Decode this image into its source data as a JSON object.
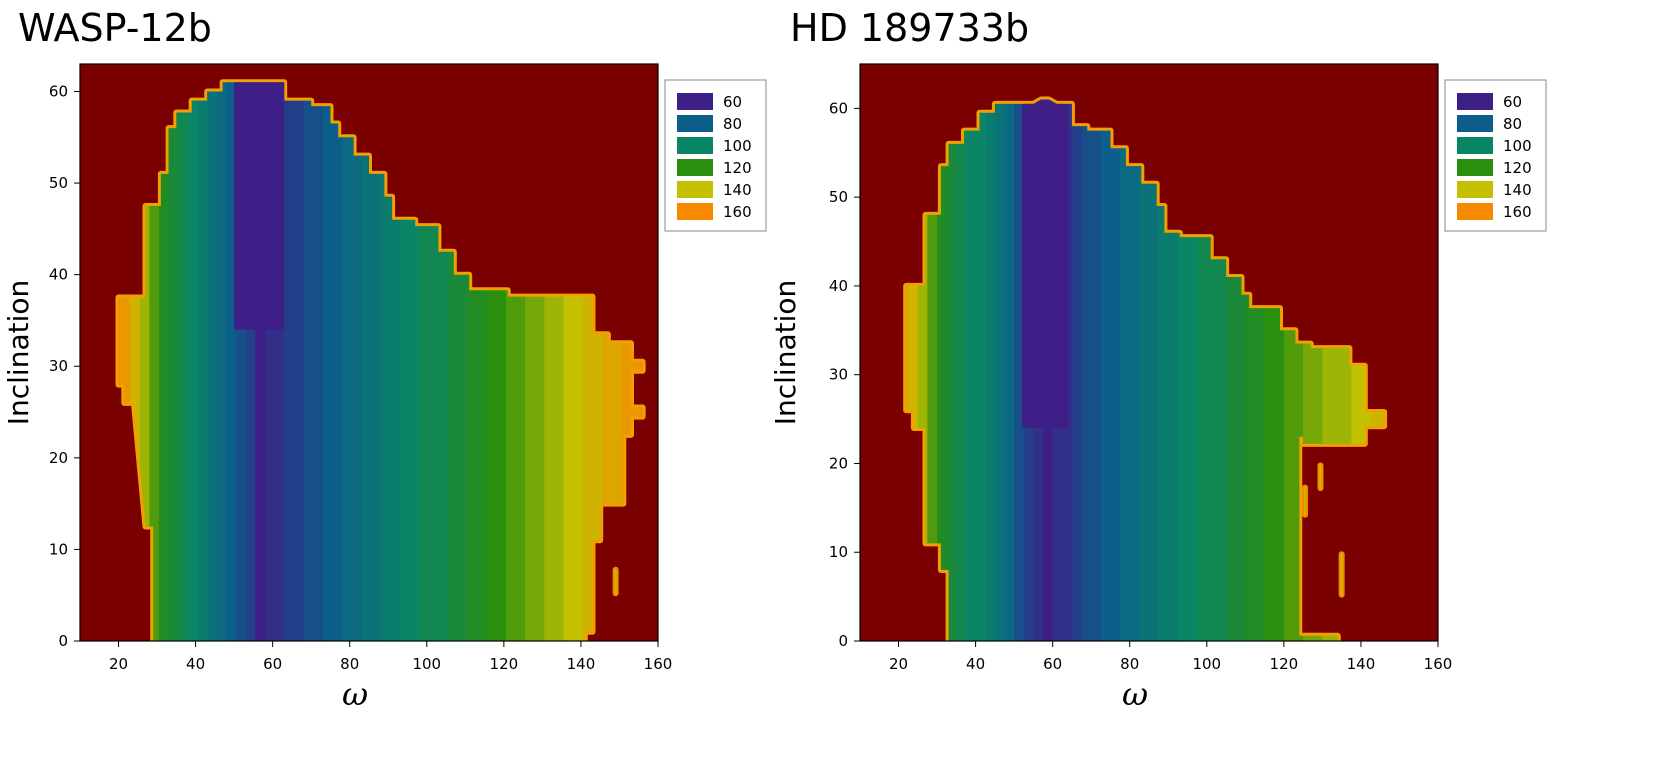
{
  "chart_data": [
    {
      "type": "heatmap",
      "title": "WASP-12b",
      "xlabel": "ω",
      "ylabel": "Inclination",
      "xlim": [
        10,
        160
      ],
      "ylim": [
        0,
        63
      ],
      "x_ticks": [
        20,
        40,
        60,
        80,
        100,
        120,
        140,
        160
      ],
      "y_ticks": [
        0,
        10,
        20,
        30,
        40,
        50,
        60
      ],
      "background_color": "#7a0000",
      "legend": {
        "placement": "top-right",
        "levels": [
          60,
          80,
          100,
          120,
          140,
          160
        ],
        "colors": [
          "#3d1f87",
          "#0b5f8a",
          "#0a8565",
          "#2a8e0e",
          "#c3c000",
          "#f58a00"
        ]
      },
      "region_boundary": {
        "upper": [
          [
            20,
            37.5
          ],
          [
            27,
            37.5
          ],
          [
            27,
            47.5
          ],
          [
            31,
            47.5
          ],
          [
            31,
            51
          ],
          [
            33,
            51
          ],
          [
            33,
            56
          ],
          [
            35,
            56
          ],
          [
            35,
            57.7
          ],
          [
            39,
            57.7
          ],
          [
            39,
            59
          ],
          [
            43,
            59
          ],
          [
            43,
            60
          ],
          [
            47,
            60
          ],
          [
            47,
            61
          ],
          [
            63,
            61
          ],
          [
            63,
            59
          ],
          [
            70,
            59
          ],
          [
            70,
            58.4
          ],
          [
            75,
            58.4
          ],
          [
            75,
            56.5
          ],
          [
            77,
            56.5
          ],
          [
            77,
            55
          ],
          [
            81,
            55
          ],
          [
            81,
            53
          ],
          [
            85,
            53
          ],
          [
            85,
            51
          ],
          [
            89,
            51
          ],
          [
            89,
            48.5
          ],
          [
            91,
            48.5
          ],
          [
            91,
            46
          ],
          [
            97,
            46
          ],
          [
            97,
            45.3
          ],
          [
            103,
            45.3
          ],
          [
            103,
            42.5
          ],
          [
            107,
            42.5
          ],
          [
            107,
            40
          ],
          [
            111,
            40
          ],
          [
            111,
            38.3
          ],
          [
            121,
            38.3
          ],
          [
            121,
            37.6
          ],
          [
            143,
            37.6
          ],
          [
            143,
            33.5
          ],
          [
            147,
            33.5
          ],
          [
            147,
            32.5
          ],
          [
            153,
            32.5
          ],
          [
            153,
            30.5
          ],
          [
            156,
            30.5
          ],
          [
            156,
            29.5
          ],
          [
            153,
            29.5
          ],
          [
            153,
            25.5
          ],
          [
            156,
            25.5
          ],
          [
            156,
            24.5
          ],
          [
            153,
            24.5
          ],
          [
            153,
            22.5
          ]
        ],
        "lower": [
          [
            20,
            37.5
          ],
          [
            20,
            28
          ],
          [
            21.5,
            28
          ],
          [
            21.5,
            26
          ],
          [
            24,
            26
          ],
          [
            27,
            12.5
          ],
          [
            29,
            12.5
          ],
          [
            29,
            0
          ],
          [
            141,
            0
          ],
          [
            141,
            1
          ],
          [
            143,
            1
          ],
          [
            143,
            11
          ],
          [
            145,
            11
          ],
          [
            145,
            15
          ],
          [
            151,
            15
          ],
          [
            151,
            22.5
          ],
          [
            153,
            22.5
          ]
        ]
      },
      "color_gradient": {
        "x": [
          20,
          25,
          30,
          40,
          50,
          57,
          65,
          75,
          85,
          95,
          105,
          112,
          117,
          122,
          127,
          132,
          137,
          142,
          147,
          152,
          156
        ],
        "value": [
          160,
          140,
          120,
          100,
          80,
          60,
          70,
          80,
          90,
          100,
          108,
          115,
          120,
          125,
          130,
          135,
          140,
          145,
          150,
          155,
          158
        ]
      },
      "purple_core": {
        "x_range": [
          50,
          63
        ],
        "inclination_min": 34
      },
      "isolated_patches": [
        {
          "x": 149,
          "inclination_range": [
            5,
            8
          ]
        }
      ]
    },
    {
      "type": "heatmap",
      "title": "HD 189733b",
      "xlabel": "ω",
      "ylabel": "Inclination",
      "xlim": [
        10,
        160
      ],
      "ylim": [
        0,
        65
      ],
      "x_ticks": [
        20,
        40,
        60,
        80,
        100,
        120,
        140,
        160
      ],
      "y_ticks": [
        0,
        10,
        20,
        30,
        40,
        50,
        60
      ],
      "background_color": "#7a0000",
      "legend": {
        "placement": "top-right",
        "levels": [
          60,
          80,
          100,
          120,
          140,
          160
        ],
        "colors": [
          "#3d1f87",
          "#0b5f8a",
          "#0a8565",
          "#2a8e0e",
          "#c3c000",
          "#f58a00"
        ]
      },
      "region_boundary": {
        "upper": [
          [
            22,
            40
          ],
          [
            27,
            40
          ],
          [
            27,
            48
          ],
          [
            31,
            48
          ],
          [
            31,
            53.5
          ],
          [
            33,
            53.5
          ],
          [
            33,
            56
          ],
          [
            37,
            56
          ],
          [
            37,
            57.5
          ],
          [
            41,
            57.5
          ],
          [
            41,
            59.5
          ],
          [
            45,
            59.5
          ],
          [
            45,
            60.5
          ],
          [
            55,
            60.5
          ],
          [
            57,
            61
          ],
          [
            59,
            61
          ],
          [
            61,
            60.5
          ],
          [
            65,
            60.5
          ],
          [
            65,
            58
          ],
          [
            69,
            58
          ],
          [
            69,
            57.5
          ],
          [
            75,
            57.5
          ],
          [
            75,
            55.5
          ],
          [
            79,
            55.5
          ],
          [
            79,
            53.5
          ],
          [
            83,
            53.5
          ],
          [
            83,
            51.5
          ],
          [
            87,
            51.5
          ],
          [
            87,
            49
          ],
          [
            89,
            49
          ],
          [
            89,
            46
          ],
          [
            93,
            46
          ],
          [
            93,
            45.5
          ],
          [
            101,
            45.5
          ],
          [
            101,
            43
          ],
          [
            105,
            43
          ],
          [
            105,
            41
          ],
          [
            109,
            41
          ],
          [
            109,
            39
          ],
          [
            111,
            39
          ],
          [
            111,
            37.5
          ],
          [
            119,
            37.5
          ],
          [
            119,
            35
          ],
          [
            123,
            35
          ],
          [
            123,
            33.5
          ],
          [
            127,
            33.5
          ],
          [
            127,
            33
          ],
          [
            137,
            33
          ],
          [
            137,
            31
          ],
          [
            141,
            31
          ],
          [
            141,
            25.8
          ],
          [
            146,
            25.8
          ],
          [
            146,
            24.2
          ],
          [
            141,
            24.2
          ],
          [
            141,
            22.2
          ]
        ],
        "lower": [
          [
            22,
            40
          ],
          [
            22,
            26
          ],
          [
            24,
            26
          ],
          [
            24,
            24
          ],
          [
            27,
            24
          ],
          [
            27,
            11
          ],
          [
            31,
            11
          ],
          [
            31,
            8
          ],
          [
            33,
            8
          ],
          [
            33,
            0
          ],
          [
            134,
            0
          ],
          [
            134,
            0.6
          ],
          [
            124,
            0.6
          ],
          [
            124,
            23
          ],
          [
            125,
            23
          ],
          [
            125,
            22.2
          ],
          [
            141,
            22.2
          ]
        ]
      },
      "color_gradient": {
        "x": [
          22,
          27,
          32,
          40,
          50,
          58,
          66,
          75,
          85,
          95,
          105,
          112,
          117,
          122,
          127,
          132,
          137,
          142,
          146
        ],
        "value": [
          150,
          130,
          115,
          100,
          80,
          60,
          70,
          80,
          90,
          100,
          108,
          114,
          120,
          125,
          130,
          134,
          138,
          142,
          145
        ]
      },
      "purple_core": {
        "x_range": [
          52,
          64
        ],
        "inclination_min": 24
      },
      "isolated_patches": [
        {
          "x": 125.5,
          "inclination_range": [
            14,
            17.5
          ]
        },
        {
          "x": 129.5,
          "inclination_range": [
            17,
            20
          ]
        },
        {
          "x": 135,
          "inclination_range": [
            5,
            10
          ]
        }
      ]
    }
  ]
}
